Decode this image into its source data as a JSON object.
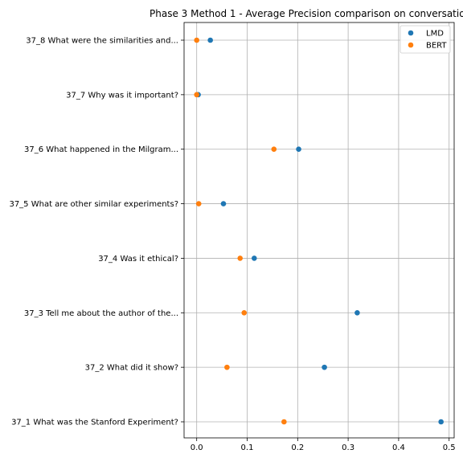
{
  "chart_data": {
    "type": "scatter",
    "title": "Phase 3 Method 1 - Average Precision comparison on conversatio",
    "xlabel": "",
    "ylabel": "",
    "xlim": [
      -0.025,
      0.51
    ],
    "xticks": [
      0.0,
      0.1,
      0.2,
      0.3,
      0.4,
      0.5
    ],
    "xtick_labels": [
      "0.0",
      "0.1",
      "0.2",
      "0.3",
      "0.4",
      "0.5"
    ],
    "grid": true,
    "legend_position": "top-right",
    "categories": [
      "37_8 What were the similarities and...",
      "37_7 Why was it important?",
      "37_6 What happened in the Milgram...",
      "37_5 What are other similar experiments?",
      "37_4 Was it ethical?",
      "37_3 Tell me about the author of the...",
      "37_2 What did it show?",
      "37_1 What was the Stanford Experiment?"
    ],
    "series": [
      {
        "name": "LMD",
        "color": "#1f77b4",
        "values": [
          0.027,
          0.003,
          0.202,
          0.053,
          0.114,
          0.318,
          0.253,
          0.484
        ]
      },
      {
        "name": "BERT",
        "color": "#ff7f0e",
        "values": [
          0.0,
          0.0,
          0.153,
          0.004,
          0.086,
          0.094,
          0.06,
          0.173
        ]
      }
    ]
  }
}
